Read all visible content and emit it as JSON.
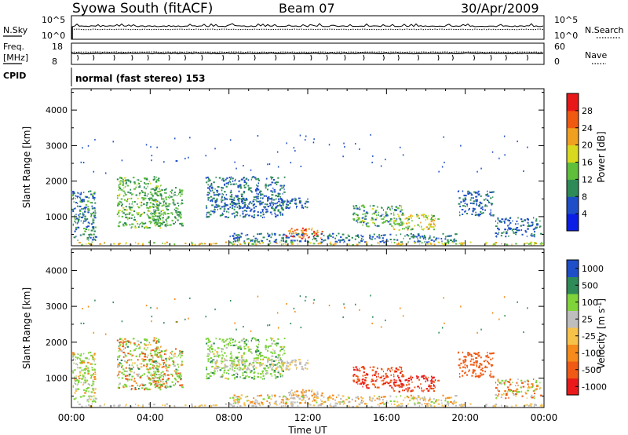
{
  "header": {
    "station": "Syowa South (fitACF)",
    "beam": "Beam 07",
    "date": "30/Apr/2009"
  },
  "strips": {
    "nsky_label": "N.Sky",
    "nsearch_label": "N.Search",
    "nsky_ticks": [
      "10^5",
      "10^0"
    ],
    "freq_label_1": "Freq.",
    "freq_label_2": "[MHz]",
    "freq_ticks": [
      "18",
      "8"
    ],
    "nave_label": "Nave",
    "nave_ticks": [
      "60",
      "0"
    ],
    "cpid_label": "CPID",
    "cpid_text": "normal (fast stereo) 153"
  },
  "colors": {
    "power": [
      "#0a1ee6",
      "#1f4fc8",
      "#2e8b57",
      "#5fbf3a",
      "#d8d81f",
      "#f0a020",
      "#f05a10",
      "#e81818"
    ],
    "velocity": [
      "#ea1a1a",
      "#f05a14",
      "#f68a1a",
      "#f7c24a",
      "#bebebe",
      "#7fd43a",
      "#2e8b57",
      "#1f4fc8"
    ]
  },
  "chart_data": [
    {
      "type": "heatmap",
      "name": "power",
      "xlabel": "",
      "ylabel": "Slant Range [km]",
      "ylim": [
        180,
        4600
      ],
      "yticks": [
        1000,
        2000,
        3000,
        4000
      ],
      "colorbar": {
        "label": "Power [dB]",
        "ticks": [
          4,
          8,
          12,
          16,
          20,
          24,
          28
        ],
        "range": [
          0,
          32
        ]
      }
    },
    {
      "type": "heatmap",
      "name": "velocity",
      "xlabel": "Time UT",
      "ylabel": "Slant Range [km]",
      "ylim": [
        180,
        4600
      ],
      "yticks": [
        1000,
        2000,
        3000,
        4000
      ],
      "xticks": [
        "00:00",
        "04:00",
        "08:00",
        "12:00",
        "16:00",
        "20:00",
        "00:00"
      ],
      "xrange_hours": [
        0,
        24
      ],
      "colorbar": {
        "label": "Velocity [m s",
        "label_sup": "-1",
        "label_end": "]",
        "ticks": [
          "1000",
          "500",
          "100",
          "25",
          "-25",
          "-100",
          "-500",
          "-1000"
        ]
      },
      "blobs": [
        {
          "t": [
            0.0,
            1.2
          ],
          "r": [
            300,
            1700
          ],
          "pw": [
            4,
            14
          ],
          "v": [
            -100,
            300
          ]
        },
        {
          "t": [
            2.3,
            4.6
          ],
          "r": [
            650,
            2100
          ],
          "pw": [
            8,
            18
          ],
          "v": [
            -300,
            600
          ]
        },
        {
          "t": [
            4.0,
            5.6
          ],
          "r": [
            700,
            1800
          ],
          "pw": [
            8,
            16
          ],
          "v": [
            -300,
            600
          ]
        },
        {
          "t": [
            6.8,
            10.8
          ],
          "r": [
            950,
            2100
          ],
          "pw": [
            4,
            12
          ],
          "v": [
            0,
            600
          ]
        },
        {
          "t": [
            7.2,
            12.0
          ],
          "r": [
            1200,
            1500
          ],
          "pw": [
            4,
            10
          ],
          "v": [
            -25,
            100
          ]
        },
        {
          "t": [
            10.8,
            12.8
          ],
          "r": [
            350,
            650
          ],
          "pw": [
            20,
            30
          ],
          "v": [
            -100,
            100
          ]
        },
        {
          "t": [
            14.2,
            16.8
          ],
          "r": [
            700,
            1300
          ],
          "pw": [
            6,
            18
          ],
          "v": [
            -700,
            -200
          ]
        },
        {
          "t": [
            16.3,
            18.6
          ],
          "r": [
            600,
            1050
          ],
          "pw": [
            10,
            24
          ],
          "v": [
            -800,
            -300
          ]
        },
        {
          "t": [
            19.6,
            21.4
          ],
          "r": [
            1000,
            1700
          ],
          "pw": [
            4,
            10
          ],
          "v": [
            -500,
            -100
          ]
        },
        {
          "t": [
            21.5,
            23.8
          ],
          "r": [
            400,
            950
          ],
          "pw": [
            4,
            10
          ],
          "v": [
            -300,
            200
          ]
        },
        {
          "t": [
            8.0,
            19.5
          ],
          "r": [
            250,
            500
          ],
          "pw": [
            4,
            12
          ],
          "v": [
            -100,
            150
          ]
        },
        {
          "t": [
            0.0,
            24.0
          ],
          "r": [
            180,
            260
          ],
          "pw": [
            12,
            24
          ],
          "v": [
            -25,
            100
          ]
        }
      ]
    }
  ]
}
